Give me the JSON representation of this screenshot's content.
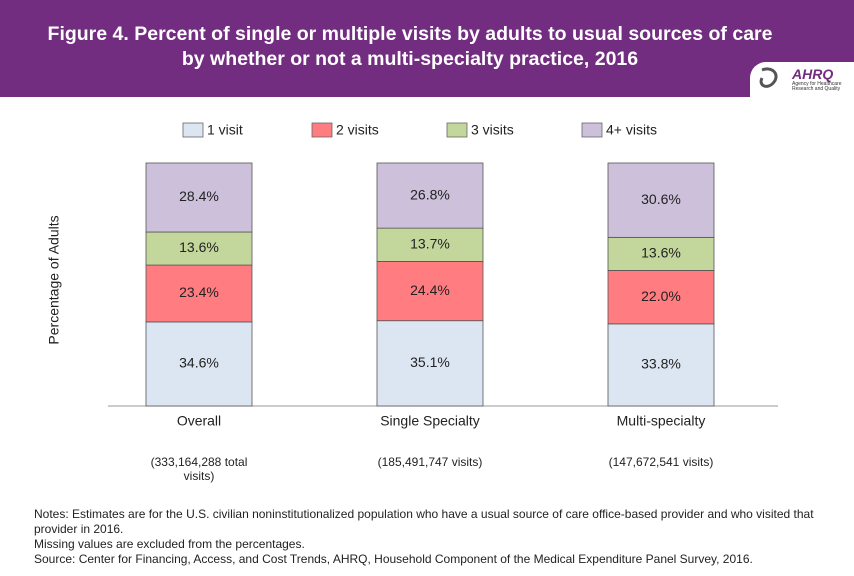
{
  "chart_data": {
    "type": "stacked_bar",
    "title": "Figure 4. Percent of single or multiple visits by adults to usual sources of care by whether or not a multi-specialty practice, 2016",
    "ylabel": "Percentage of Adults",
    "categories": [
      "Overall",
      "Single Specialty",
      "Multi-specialty"
    ],
    "category_notes": [
      "(333,164,288 total visits)",
      "(185,491,747 visits)",
      "(147,672,541 visits)"
    ],
    "ylim": [
      0,
      100
    ],
    "series": [
      {
        "name": "1 visit",
        "color": "#dce6f2",
        "values": [
          34.6,
          35.1,
          33.8
        ],
        "value_labels": [
          "34.6%",
          "35.1%",
          "33.8%"
        ]
      },
      {
        "name": "2 visits",
        "color": "#ff7c80",
        "values": [
          23.4,
          24.4,
          22.0
        ],
        "value_labels": [
          "23.4%",
          "24.4%",
          "22.0%"
        ]
      },
      {
        "name": "3 visits",
        "color": "#c3d69b",
        "values": [
          13.6,
          13.7,
          13.6
        ],
        "value_labels": [
          "13.6%",
          "13.7%",
          "13.6%"
        ]
      },
      {
        "name": "4+ visits",
        "color": "#ccc0da",
        "values": [
          28.4,
          26.8,
          30.6
        ],
        "value_labels": [
          "28.4%",
          "26.8%",
          "30.6%"
        ]
      }
    ],
    "notes": [
      "Notes: Estimates are for the U.S. civilian noninstitutionalized population who have a usual source of care office-based provider and who visited that provider in 2016.",
      "Missing values are excluded from the percentages.",
      "Source: Center for Financing, Access, and Cost Trends, AHRQ, Household Component of the Medical Expenditure Panel Survey, 2016."
    ]
  },
  "logo": {
    "name": "AHRQ",
    "tagline": "Agency for Healthcare Research and Quality"
  }
}
